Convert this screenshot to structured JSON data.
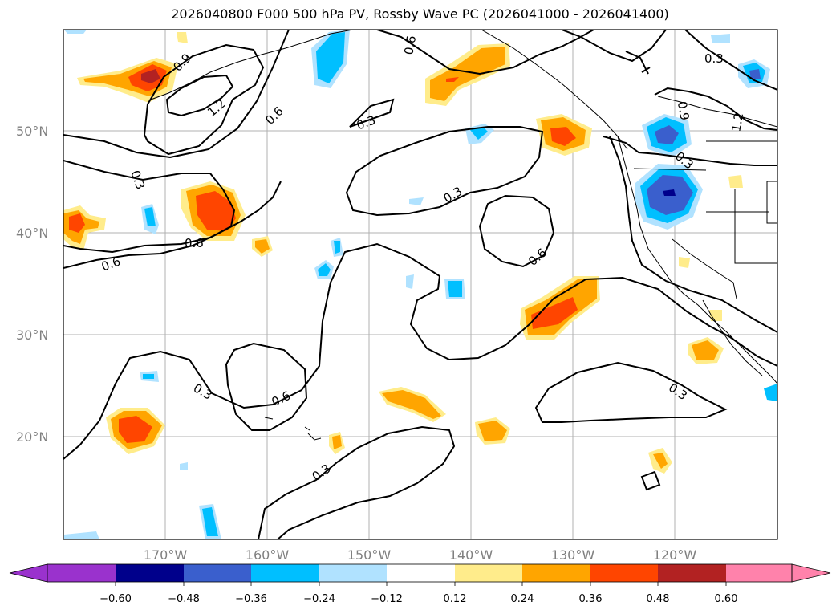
{
  "title": "2026040800 F000 500 hPa PV, Rossby Wave PC (2026041000 - 2026041400)",
  "lon_labels": [
    "170°W",
    "160°W",
    "150°W",
    "140°W",
    "130°W",
    "120°W"
  ],
  "lat_labels": [
    "50°N",
    "40°N",
    "30°N",
    "20°N"
  ],
  "contour_labels": [
    "0.9",
    "1.2",
    "0.6",
    "0.3",
    "0.6",
    "0.6",
    "0.3",
    "0.3",
    "0.6",
    "0.3",
    "0.6",
    "0.3",
    "0.3",
    "0.6",
    "0.9",
    "1.2",
    "0.3",
    "0.3"
  ],
  "colorbar": {
    "ticks": [
      "−0.60",
      "−0.48",
      "−0.36",
      "−0.24",
      "−0.12",
      "0.12",
      "0.24",
      "0.36",
      "0.48",
      "0.60"
    ],
    "colors": [
      "#9a32cd",
      "#00008b",
      "#3a5fcd",
      "#00bfff",
      "#b0e2ff",
      "#ffffff",
      "#ffec8b",
      "#ffa500",
      "#ff4500",
      "#b22222",
      "#ff82ab"
    ]
  },
  "colors": {
    "pos1": "#ffec8b",
    "pos2": "#ffa500",
    "pos3": "#ff4500",
    "pos4": "#b22222",
    "neg1": "#b0e2ff",
    "neg2": "#00bfff",
    "neg3": "#3a5fcd",
    "neg4": "#00008b",
    "grid": "#b0b0b0"
  }
}
